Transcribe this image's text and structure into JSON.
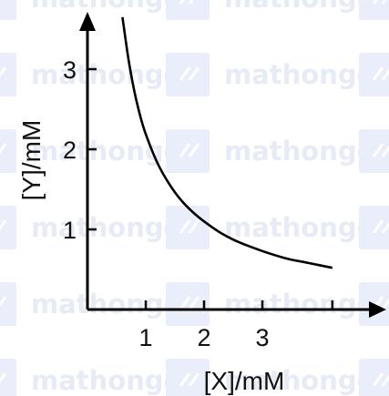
{
  "watermark": {
    "text": "mathongo"
  },
  "colors": {
    "axis": "#000000",
    "curve": "#000000",
    "watermark": "#e6ebf5"
  },
  "chart_data": {
    "type": "line",
    "title": "",
    "xlabel": "[X]/mM",
    "ylabel": "[Y]/mM",
    "x_ticks": [
      "1",
      "2",
      "3"
    ],
    "y_ticks": [
      "1",
      "2",
      "3"
    ],
    "xlim": [
      0,
      4.3
    ],
    "ylim": [
      0,
      3.8
    ],
    "grid": false,
    "series": [
      {
        "x": [
          0.6,
          0.7,
          0.8,
          0.9,
          1.0,
          1.2,
          1.4,
          1.6,
          1.8,
          2.0,
          2.3,
          2.6,
          3.0,
          3.4,
          3.8,
          4.2
        ],
        "y": [
          3.65,
          3.14,
          2.74,
          2.43,
          2.19,
          1.83,
          1.57,
          1.37,
          1.22,
          1.1,
          0.95,
          0.84,
          0.73,
          0.64,
          0.58,
          0.52
        ]
      }
    ]
  }
}
